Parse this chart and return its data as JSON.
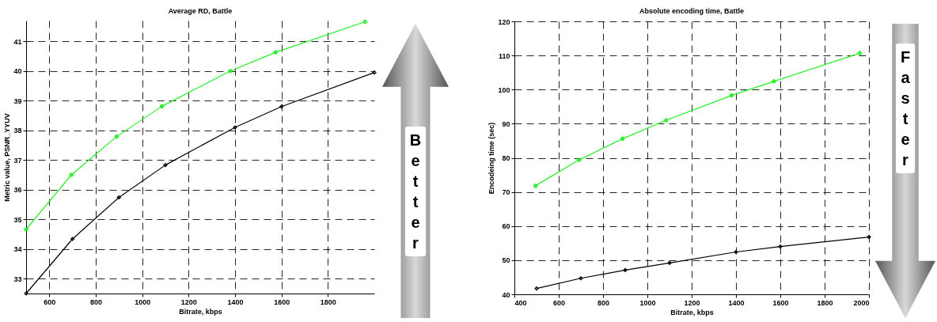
{
  "chart_data": [
    {
      "type": "line",
      "title": "Average RD, Battle",
      "xlabel": "Bitrate, kbps",
      "ylabel": "Metric value, PSNR_YYUV",
      "xlim": [
        500,
        2000
      ],
      "ylim": [
        32.5,
        41.7
      ],
      "xticks": [
        600,
        800,
        1000,
        1200,
        1400,
        1600,
        1800
      ],
      "yticks": [
        33,
        34,
        35,
        36,
        37,
        38,
        39,
        40,
        41
      ],
      "grid": true,
      "series": [
        {
          "color": "#22ee22",
          "marker": "cross",
          "x": [
            500,
            695,
            890,
            1085,
            1380,
            1575,
            1960
          ],
          "values": [
            34.66,
            36.5,
            37.79,
            38.81,
            40.0,
            40.63,
            41.66
          ]
        },
        {
          "color": "#000000",
          "marker": "diamond",
          "x": [
            500,
            700,
            900,
            1100,
            1400,
            1600,
            2000
          ],
          "values": [
            32.5,
            34.34,
            35.74,
            36.83,
            38.1,
            38.8,
            39.95
          ]
        }
      ],
      "annotations": [
        "Better"
      ]
    },
    {
      "type": "line",
      "title": "Absolute encoding time, Battle",
      "xlabel": "Bitrate, kbps",
      "ylabel": "Encodeing time (sec)",
      "xlim": [
        400,
        2000
      ],
      "ylim": [
        40,
        120
      ],
      "xticks": [
        400,
        600,
        800,
        1000,
        1200,
        1400,
        1600,
        1800,
        2000
      ],
      "yticks": [
        40,
        50,
        60,
        70,
        80,
        90,
        100,
        110,
        120
      ],
      "grid": true,
      "series": [
        {
          "color": "#22ee22",
          "marker": "cross",
          "x": [
            495,
            692,
            888,
            1085,
            1380,
            1571,
            1959
          ],
          "values": [
            71.8,
            79.4,
            85.6,
            91.0,
            98.3,
            102.4,
            110.7
          ]
        },
        {
          "color": "#000000",
          "marker": "diamond",
          "x": [
            500,
            700,
            900,
            1100,
            1400,
            1600,
            2000
          ],
          "values": [
            41.7,
            44.7,
            47.1,
            49.2,
            52.4,
            54.0,
            56.8
          ]
        }
      ],
      "annotations": [
        "Faster"
      ]
    }
  ]
}
